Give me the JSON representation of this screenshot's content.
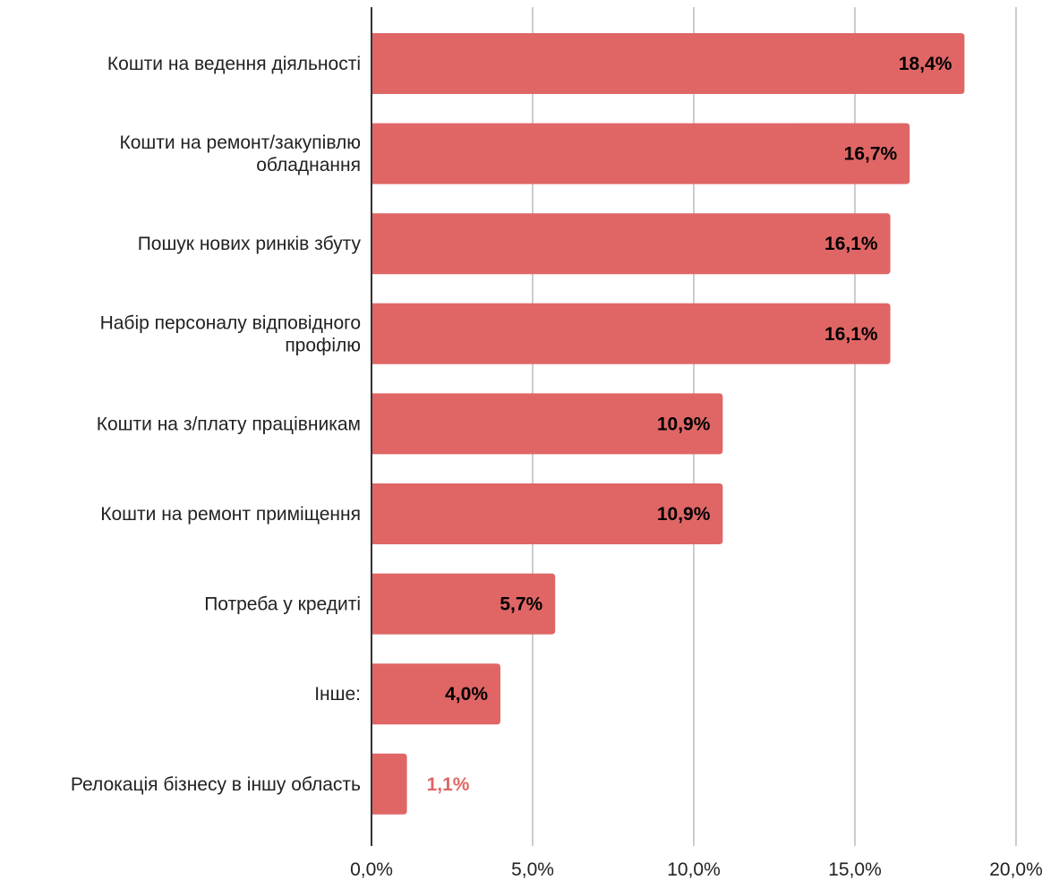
{
  "chart_data": {
    "type": "bar",
    "orientation": "horizontal",
    "title": "",
    "xlabel": "",
    "ylabel": "",
    "categories": [
      "Кошти на ведення діяльності",
      "Кошти на ремонт/закупівлю обладнання",
      "Пошук нових ринків збуту",
      "Набір персоналу відповідного профілю",
      "Кошти на з/плату працівникам",
      "Кошти на ремонт приміщення",
      "Потреба у кредиті",
      "Інше:",
      "Релокація бізнесу в іншу область"
    ],
    "category_lines": [
      [
        "Кошти на ведення діяльності"
      ],
      [
        "Кошти на ремонт/закупівлю",
        "обладнання"
      ],
      [
        "Пошук нових ринків збуту"
      ],
      [
        "Набір персоналу відповідного",
        "профілю"
      ],
      [
        "Кошти на з/плату працівникам"
      ],
      [
        "Кошти на ремонт приміщення"
      ],
      [
        "Потреба у кредиті"
      ],
      [
        "Інше:"
      ],
      [
        "Релокація бізнесу в іншу область"
      ]
    ],
    "values": [
      18.4,
      16.7,
      16.1,
      16.1,
      10.9,
      10.9,
      5.7,
      4.0,
      1.1
    ],
    "value_labels": [
      "18,4%",
      "16,7%",
      "16,1%",
      "16,1%",
      "10,9%",
      "10,9%",
      "5,7%",
      "4,0%",
      "1,1%"
    ],
    "xlim": [
      0,
      20
    ],
    "ticks": [
      0,
      5,
      10,
      15,
      20
    ],
    "tick_labels": [
      "0,0%",
      "5,0%",
      "10,0%",
      "15,0%",
      "20,0%"
    ],
    "grid": true,
    "legend": "none",
    "colors": {
      "bar": "#e06666",
      "label_inside": "#000000",
      "label_outside": "#e06666",
      "grid": "#cccccc",
      "axis": "#333333"
    }
  }
}
